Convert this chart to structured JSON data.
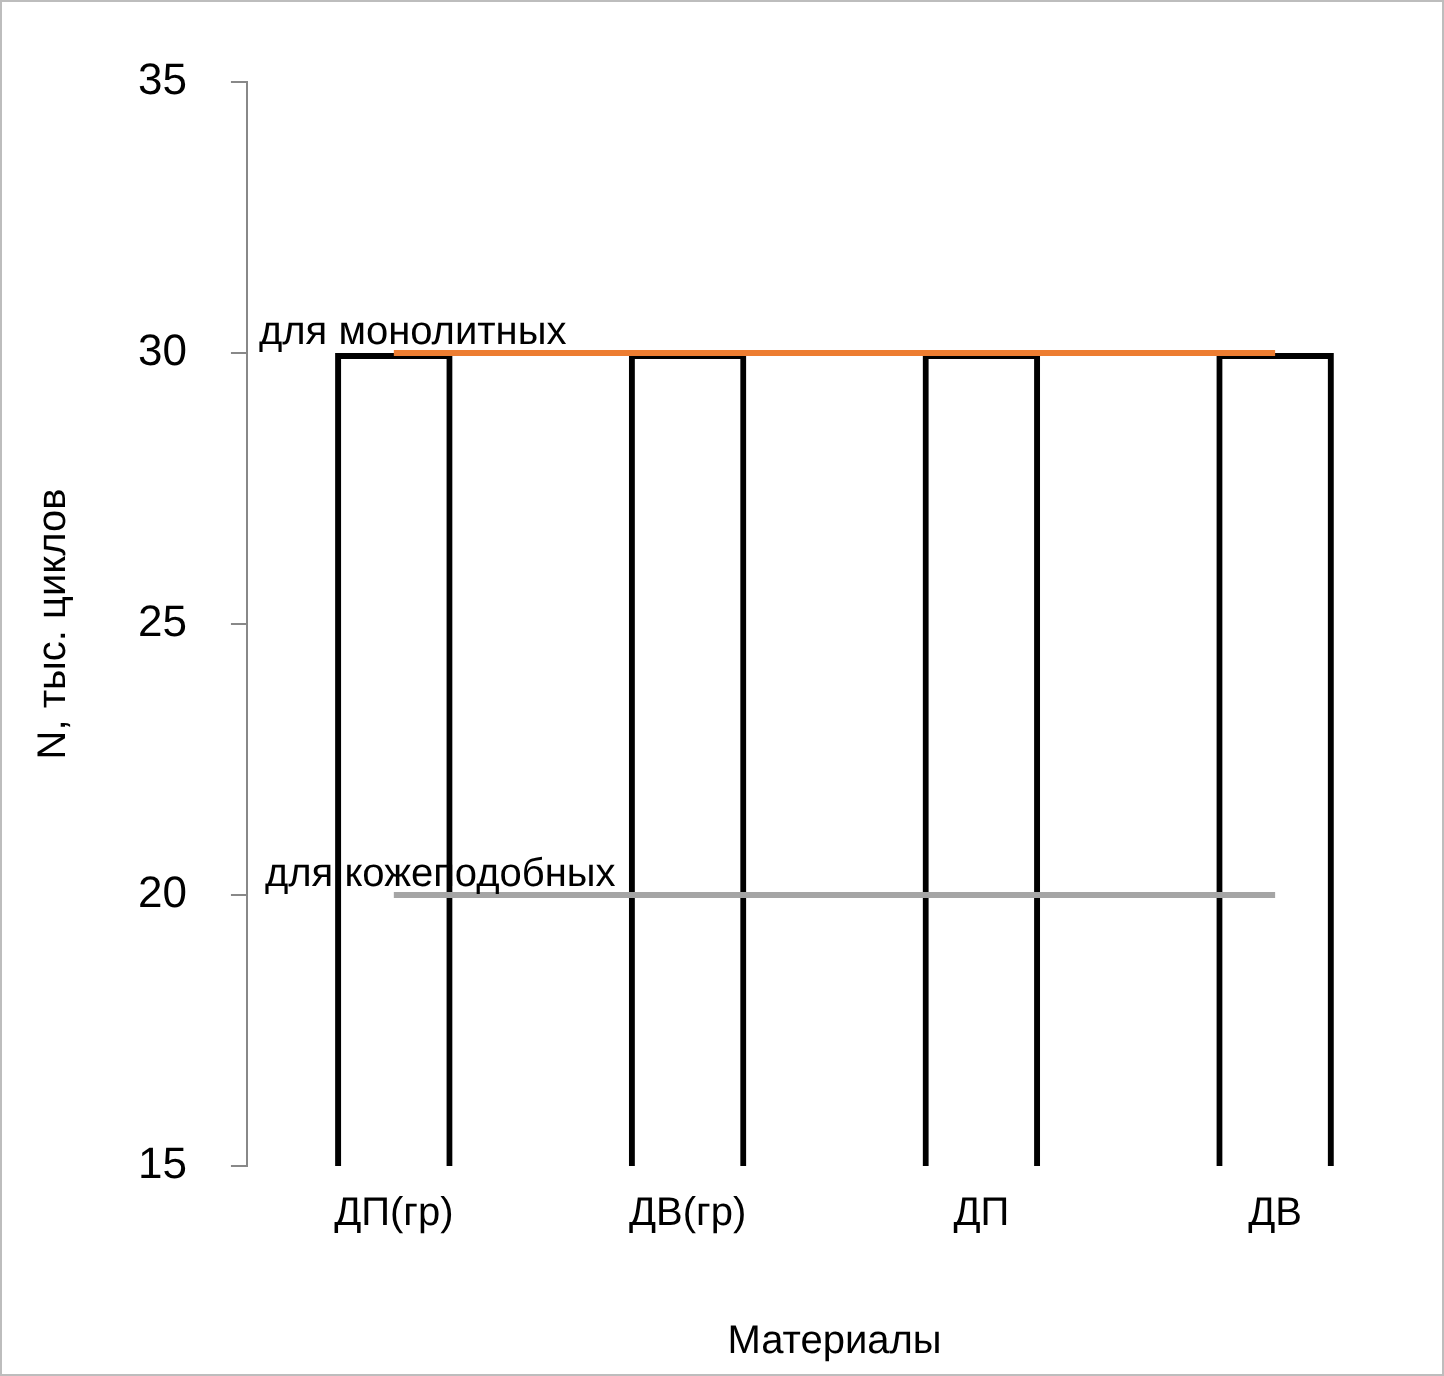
{
  "chart_data": {
    "type": "bar",
    "xlabel": "Материалы",
    "ylabel": "N, тыс. циклов",
    "categories": [
      "ДП(гр)",
      "ДВ(гр)",
      "ДП",
      "ДВ"
    ],
    "series": [
      {
        "color": "#000000",
        "values": [
          30,
          30,
          30,
          30
        ]
      },
      {
        "type": "line",
        "name": "для монолитных",
        "color": "#ed7d31",
        "values": [
          30,
          30,
          30,
          30
        ]
      },
      {
        "type": "line",
        "name": "для кожеподобных",
        "color": "#a5a5a5",
        "values": [
          20,
          20,
          20,
          20
        ]
      }
    ],
    "ylim": [
      15,
      35
    ],
    "yticks": [
      15,
      20,
      25,
      30,
      35
    ],
    "grid": false,
    "legend": false,
    "marker": "none"
  }
}
